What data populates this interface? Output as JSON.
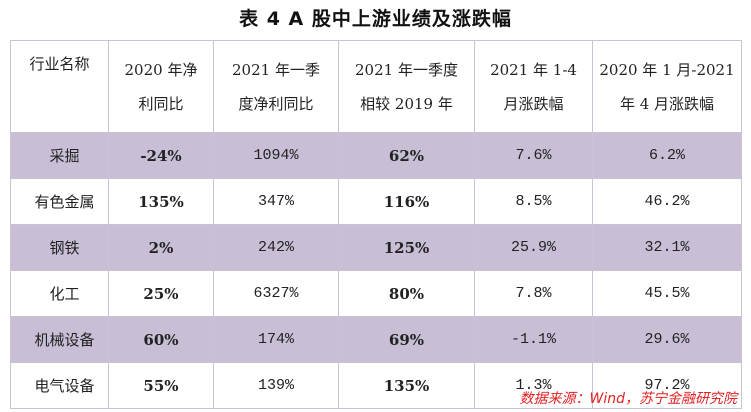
{
  "title": "表 4 A 股中上游业绩及涨跌幅",
  "headers": [
    [
      "行业名称"
    ],
    [
      "2020 年净",
      "利同比"
    ],
    [
      "2021 年一季",
      "度净利同比"
    ],
    [
      "2021 年一季度",
      "相较 2019 年"
    ],
    [
      "2021 年 1-4",
      "月涨跌幅"
    ],
    [
      "2020 年 1 月-2021",
      "年 4 月涨跌幅"
    ]
  ],
  "rows": [
    {
      "industry": "采掘",
      "v2020": "-24%",
      "q1_2021": "1094%",
      "vs2019": "62%",
      "jan_apr": "7.6%",
      "since2020": "6.2%"
    },
    {
      "industry": "有色金属",
      "v2020": "135%",
      "q1_2021": "347%",
      "vs2019": "116%",
      "jan_apr": "8.5%",
      "since2020": "46.2%"
    },
    {
      "industry": "钢铁",
      "v2020": "2%",
      "q1_2021": "242%",
      "vs2019": "125%",
      "jan_apr": "25.9%",
      "since2020": "32.1%"
    },
    {
      "industry": "化工",
      "v2020": "25%",
      "q1_2021": "6327%",
      "vs2019": "80%",
      "jan_apr": "7.8%",
      "since2020": "45.5%"
    },
    {
      "industry": "机械设备",
      "v2020": "60%",
      "q1_2021": "174%",
      "vs2019": "69%",
      "jan_apr": "-1.1%",
      "since2020": "29.6%"
    },
    {
      "industry": "电气设备",
      "v2020": "55%",
      "q1_2021": "139%",
      "vs2019": "135%",
      "jan_apr": "1.3%",
      "since2020": "97.2%"
    }
  ],
  "source": "数据来源：Wind，苏宁金融研究院",
  "colors": {
    "row_shade": "#c8bfd6",
    "source_text": "#e02222"
  }
}
